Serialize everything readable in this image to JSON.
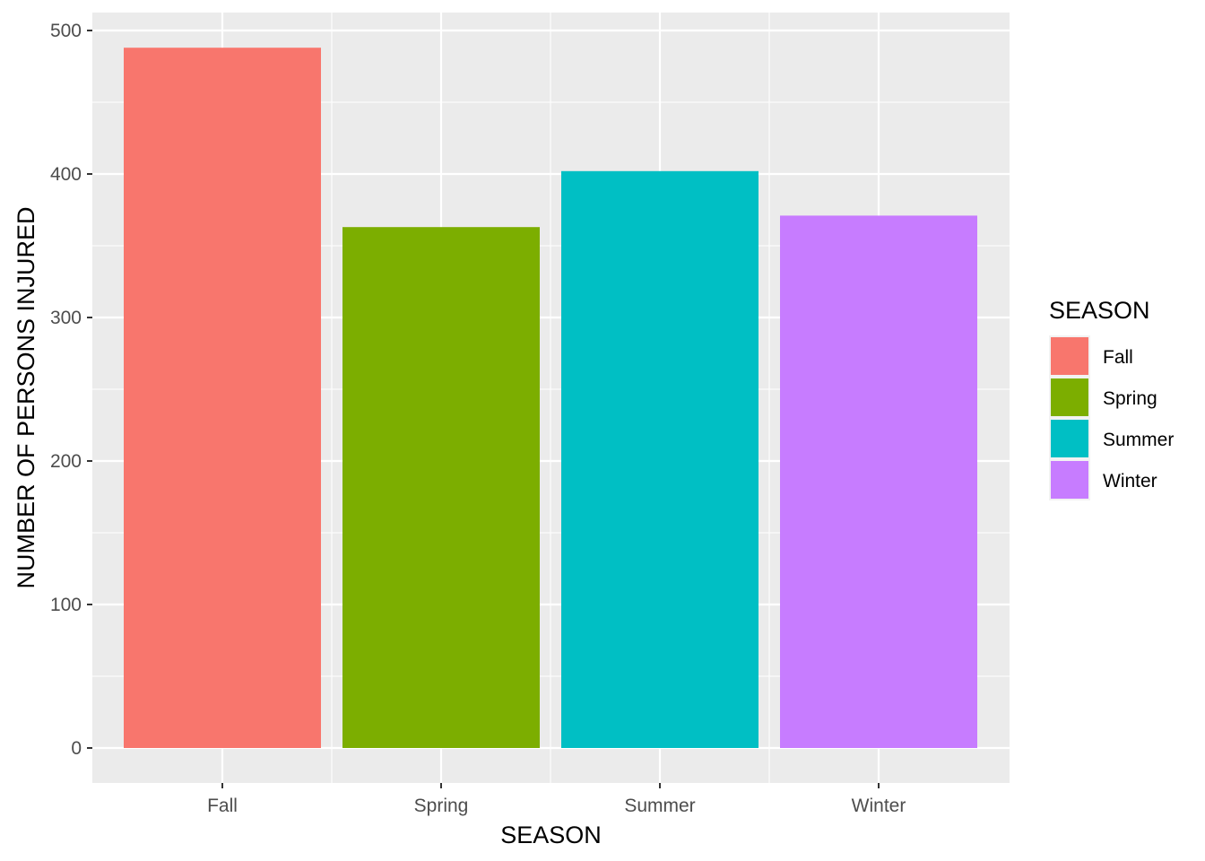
{
  "chart_data": {
    "type": "bar",
    "categories": [
      "Fall",
      "Spring",
      "Summer",
      "Winter"
    ],
    "values": [
      488,
      363,
      402,
      371
    ],
    "colors": [
      "#F8766D",
      "#7CAE00",
      "#00BFC4",
      "#C77CFF"
    ],
    "xlabel": "SEASON",
    "ylabel": "NUMBER OF PERSONS INJURED",
    "yticks": [
      0,
      100,
      200,
      300,
      400,
      500
    ],
    "ylim": [
      -25,
      512
    ],
    "grid": true,
    "panel_background": "#EBEBEB",
    "legend": {
      "title": "SEASON",
      "placement": "right",
      "items": [
        "Fall",
        "Spring",
        "Summer",
        "Winter"
      ]
    }
  }
}
